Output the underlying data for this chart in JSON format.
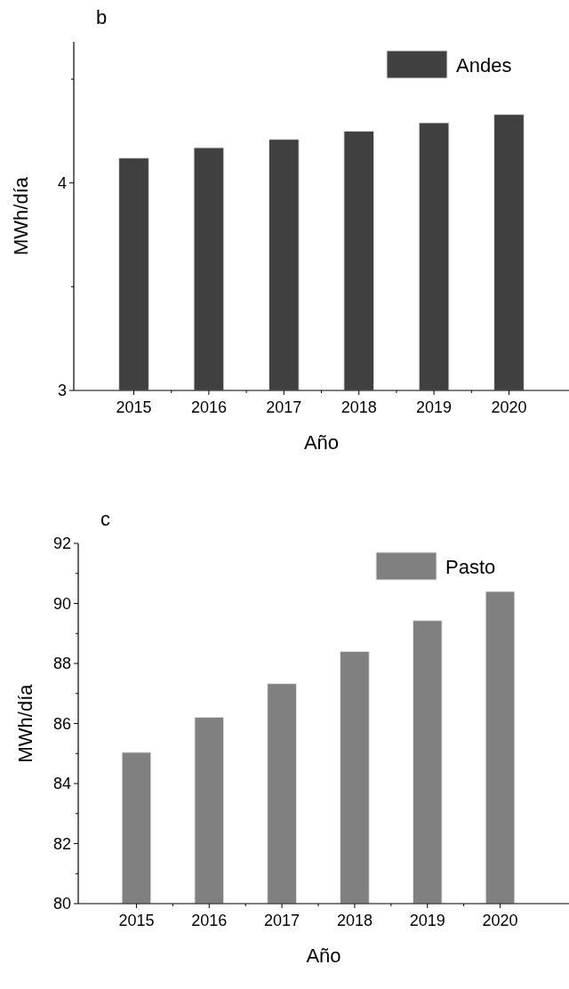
{
  "chart_data": [
    {
      "type": "bar",
      "title": "b",
      "xlabel": "Año",
      "ylabel": "MWh/día",
      "categories": [
        "2015",
        "2016",
        "2017",
        "2018",
        "2019",
        "2020"
      ],
      "series": [
        {
          "name": "Andes",
          "color": "#404040",
          "values": [
            4.12,
            4.17,
            4.21,
            4.25,
            4.29,
            4.33
          ]
        }
      ],
      "ylim": [
        3,
        4.68
      ],
      "yticks": [
        3,
        {
          "value": 3.5,
          "label": null
        },
        4,
        {
          "value": 4.5,
          "label": null
        }
      ],
      "grid": false,
      "legend": "top right"
    },
    {
      "type": "bar",
      "title": "c",
      "xlabel": "Año",
      "ylabel": "MWh/día",
      "categories": [
        "2015",
        "2016",
        "2017",
        "2018",
        "2019",
        "2020"
      ],
      "series": [
        {
          "name": "Pasto",
          "color": "#808080",
          "values": [
            85.04,
            86.21,
            87.33,
            88.4,
            89.43,
            90.4
          ]
        }
      ],
      "ylim": [
        80,
        92
      ],
      "yticks": [
        80,
        {
          "value": 81,
          "label": null
        },
        82,
        {
          "value": 83,
          "label": null
        },
        84,
        {
          "value": 85,
          "label": null
        },
        86,
        {
          "value": 87,
          "label": null
        },
        88,
        {
          "value": 89,
          "label": null
        },
        90,
        {
          "value": 91,
          "label": null
        },
        92
      ],
      "grid": false,
      "legend": "top right"
    }
  ]
}
